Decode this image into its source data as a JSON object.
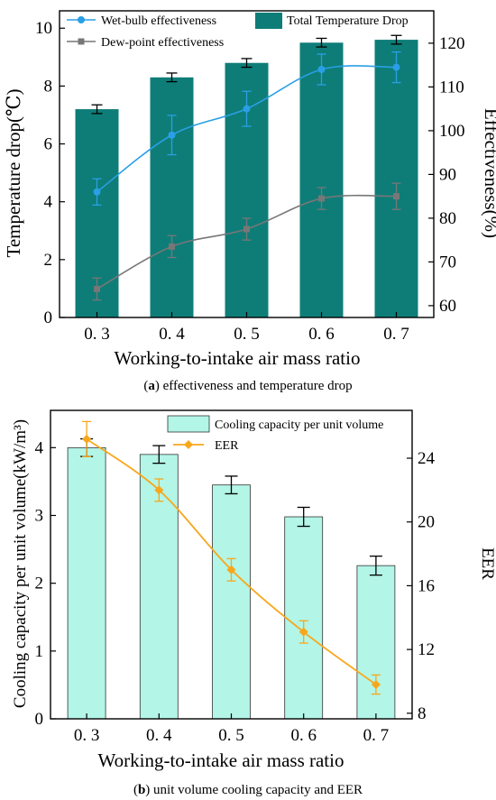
{
  "chart_data": [
    {
      "type": "bar",
      "categories": [
        "0. 3",
        "0. 4",
        "0. 5",
        "0. 6",
        "0. 7"
      ],
      "bars": {
        "name": "Total Temperature Drop",
        "values": [
          7.2,
          8.3,
          8.8,
          9.5,
          9.6
        ],
        "errors": [
          0.15,
          0.15,
          0.15,
          0.15,
          0.15
        ]
      },
      "series": [
        {
          "name": "Wet-bulb effectiveness",
          "values": [
            86,
            99,
            105,
            114,
            114.5
          ],
          "errors": [
            3,
            4.5,
            4,
            3.5,
            3.5
          ]
        },
        {
          "name": "Dew-point effectiveness",
          "values": [
            63.8,
            73.5,
            77.5,
            84.5,
            85
          ],
          "errors": [
            2.5,
            2.5,
            2.5,
            2.5,
            3
          ]
        }
      ],
      "xlabel": "Working-to-intake air mass ratio",
      "ylabel": "Temperature drop(℃)",
      "y2label": "Effectiveness(%)",
      "ylim": [
        0,
        10.6
      ],
      "y2lim": [
        57.3,
        127.4
      ],
      "yticks": [
        0,
        2,
        4,
        6,
        8,
        10
      ],
      "y2ticks": [
        60,
        70,
        80,
        90,
        100,
        110,
        120
      ],
      "caption_bold": "a",
      "caption_rest": "effectiveness and temperature drop",
      "colors": {
        "bar": "#0e7d78",
        "wet": "#2a9fe6",
        "dew": "#777777"
      }
    },
    {
      "type": "bar",
      "categories": [
        "0. 3",
        "0. 4",
        "0. 5",
        "0. 6",
        "0. 7"
      ],
      "bars": {
        "name": "Cooling capacity per unit volume",
        "values": [
          4.0,
          3.9,
          3.45,
          2.98,
          2.26
        ],
        "errors": [
          0.13,
          0.13,
          0.13,
          0.14,
          0.14
        ]
      },
      "series": [
        {
          "name": "EER",
          "values": [
            25.2,
            22,
            17,
            13.1,
            9.8
          ],
          "errors": [
            1.1,
            0.7,
            0.7,
            0.7,
            0.6
          ]
        }
      ],
      "xlabel": "Working-to-intake air mass ratio",
      "ylabel": "Cooling capacity per unit volume(kW/m³)",
      "y2label": "EER",
      "ylim": [
        0,
        4.55
      ],
      "y2lim": [
        7.65,
        27.0
      ],
      "yticks": [
        0,
        1,
        2,
        3,
        4
      ],
      "y2ticks": [
        8,
        12,
        16,
        20,
        24
      ],
      "caption_bold": "b",
      "caption_rest": "unit volume cooling capacity and EER",
      "colors": {
        "bar": "#b3f5e6",
        "line": "#f7a71c"
      }
    }
  ]
}
